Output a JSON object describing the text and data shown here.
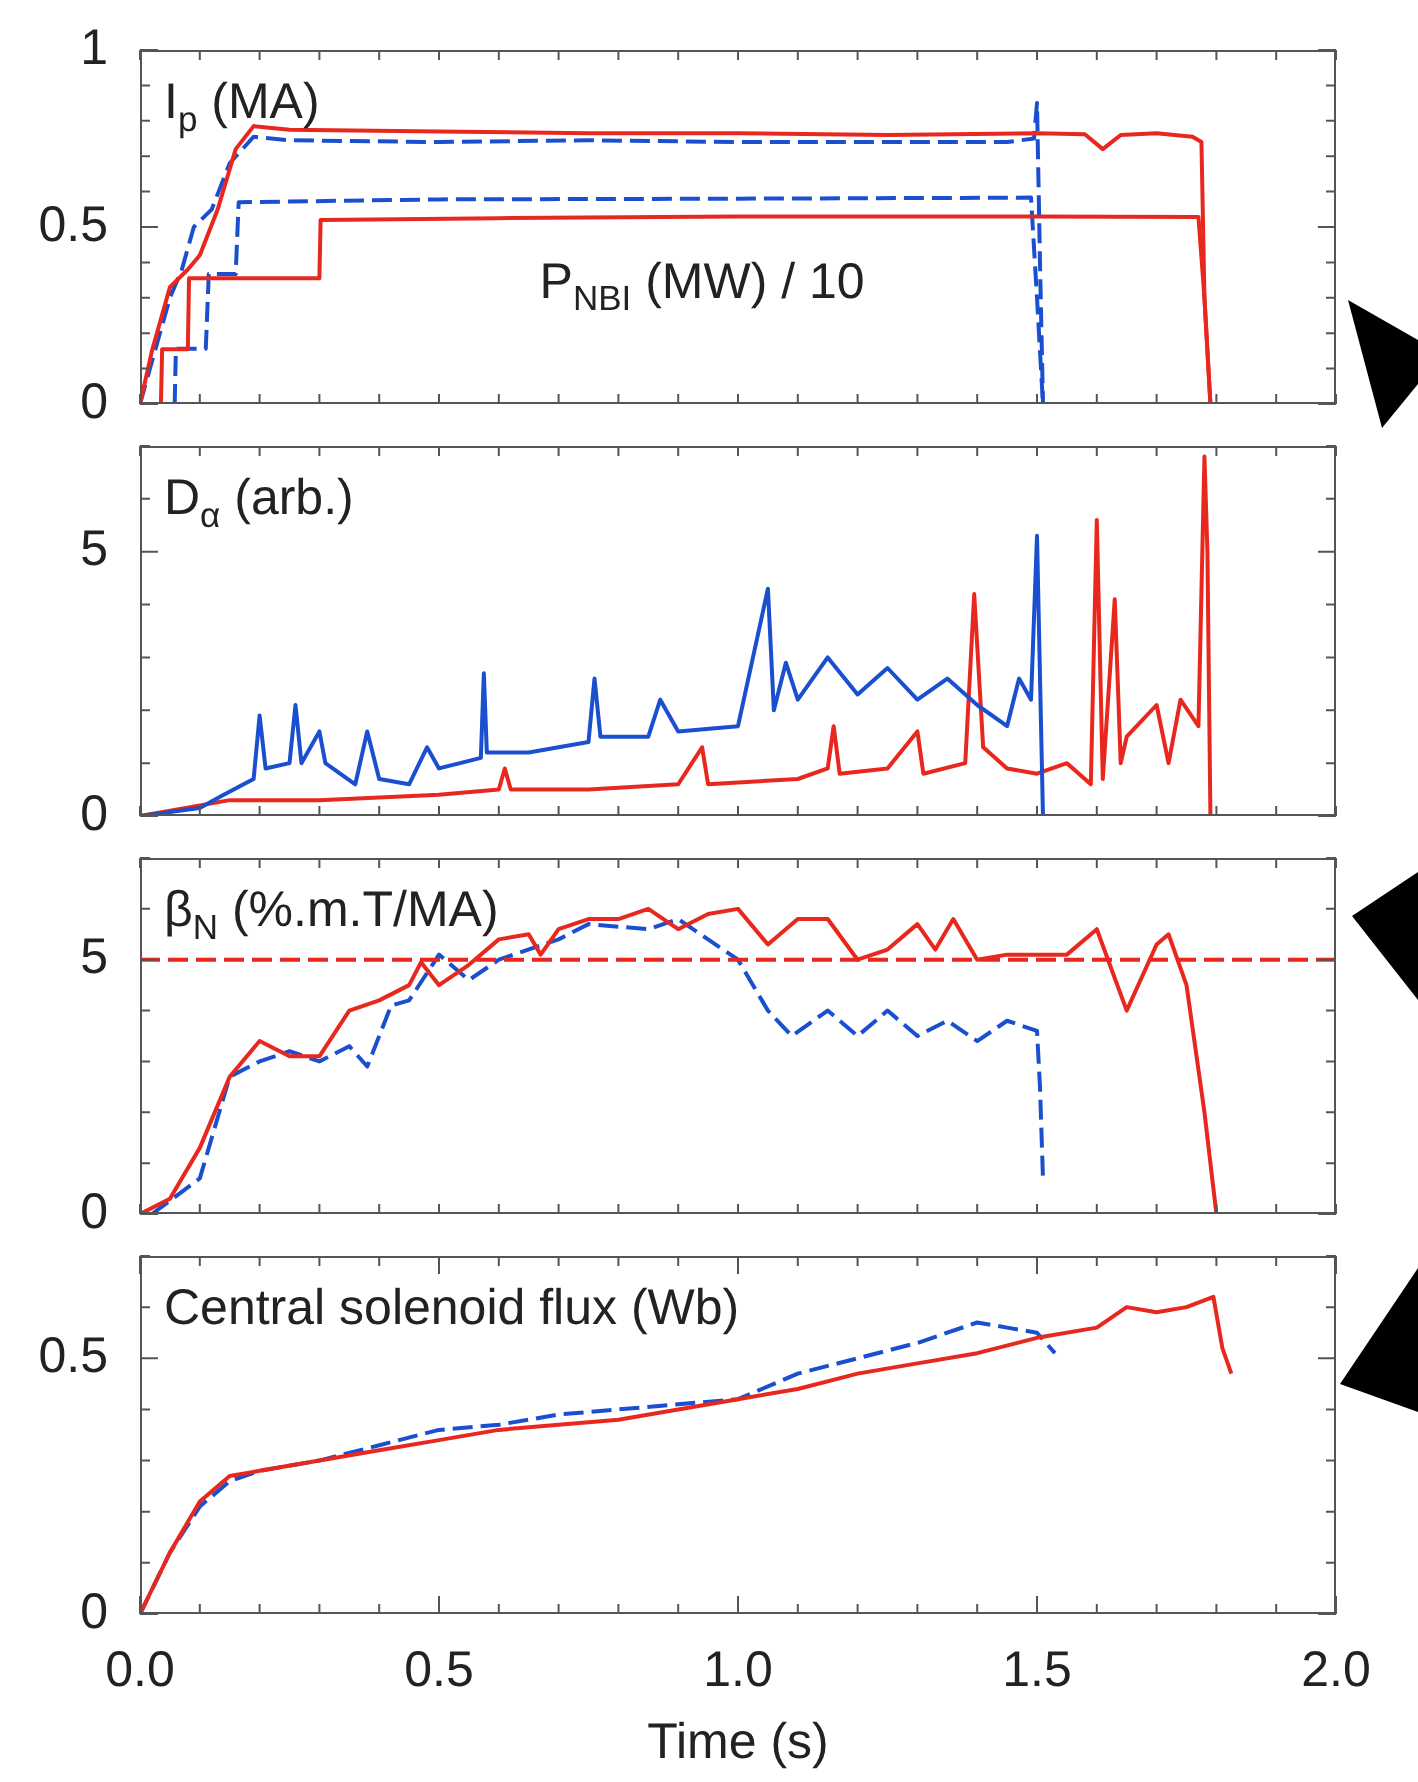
{
  "chart_data": [
    {
      "type": "line",
      "title": "I$_{p}$ (MA)",
      "annotations": [
        "P$_{NBI}$ (MW) / 10"
      ],
      "xlim": [
        0,
        2
      ],
      "ylim": [
        0,
        1
      ],
      "tick_labels": "y",
      "legend": false,
      "grid": false,
      "xticks": [
        {
          "value": 0,
          "label": null
        },
        {
          "value": 0.1,
          "label": null
        },
        {
          "value": 0.2,
          "label": null
        },
        {
          "value": 0.3,
          "label": null
        },
        {
          "value": 0.4,
          "label": null
        },
        {
          "value": 0.5,
          "label": null
        },
        {
          "value": 0.6,
          "label": null
        },
        {
          "value": 0.7,
          "label": null
        },
        {
          "value": 0.8,
          "label": null
        },
        {
          "value": 0.9,
          "label": null
        },
        {
          "value": 1,
          "label": null
        },
        {
          "value": 1.1,
          "label": null
        },
        {
          "value": 1.2,
          "label": null
        },
        {
          "value": 1.3,
          "label": null
        },
        {
          "value": 1.4,
          "label": null
        },
        {
          "value": 1.5,
          "label": null
        },
        {
          "value": 1.6,
          "label": null
        },
        {
          "value": 1.7,
          "label": null
        },
        {
          "value": 1.8,
          "label": null
        },
        {
          "value": 1.9,
          "label": null
        },
        {
          "value": 2,
          "label": null
        }
      ],
      "yticks": [
        0,
        {
          "value": 0.1,
          "label": null
        },
        {
          "value": 0.2,
          "label": null
        },
        {
          "value": 0.3,
          "label": null
        },
        {
          "value": 0.4,
          "label": null
        },
        0.5,
        {
          "value": 0.6,
          "label": null
        },
        {
          "value": 0.7,
          "label": null
        },
        {
          "value": 0.8,
          "label": null
        },
        {
          "value": 0.9,
          "label": null
        },
        1
      ],
      "series": [
        {
          "color": "#e8281e",
          "line_style": "solid",
          "x": [
            0,
            0.02,
            0.05,
            0.08,
            0.1,
            0.13,
            0.16,
            0.19,
            0.25,
            0.5,
            0.75,
            1.0,
            1.25,
            1.5,
            1.58,
            1.61,
            1.64,
            1.7,
            1.76,
            1.775,
            1.78,
            1.79
          ],
          "values": [
            0,
            0.15,
            0.33,
            0.38,
            0.42,
            0.55,
            0.72,
            0.785,
            0.775,
            0.77,
            0.765,
            0.765,
            0.76,
            0.765,
            0.762,
            0.72,
            0.76,
            0.765,
            0.755,
            0.74,
            0.3,
            0
          ]
        },
        {
          "color": "#1a4fd0",
          "line_style": "dashed",
          "x": [
            0,
            0.03,
            0.05,
            0.07,
            0.09,
            0.12,
            0.15,
            0.19,
            0.25,
            0.5,
            0.75,
            1.0,
            1.25,
            1.45,
            1.495,
            1.5,
            1.505,
            1.51
          ],
          "values": [
            0,
            0.18,
            0.3,
            0.38,
            0.5,
            0.55,
            0.68,
            0.755,
            0.745,
            0.74,
            0.745,
            0.74,
            0.74,
            0.74,
            0.75,
            0.85,
            0.4,
            0
          ]
        },
        {
          "color": "#e8281e",
          "line_style": "solid",
          "x": [
            0.035,
            0.037,
            0.08,
            0.082,
            0.3,
            0.302,
            0.6,
            1.0,
            1.5,
            1.77,
            1.78,
            1.79
          ],
          "values": [
            0,
            0.155,
            0.155,
            0.355,
            0.355,
            0.52,
            0.525,
            0.53,
            0.53,
            0.528,
            0.3,
            0
          ]
        },
        {
          "color": "#1a4fd0",
          "line_style": "dashed",
          "x": [
            0.058,
            0.06,
            0.11,
            0.115,
            0.16,
            0.165,
            0.5,
            1.0,
            1.49,
            1.5,
            1.51
          ],
          "values": [
            0,
            0.156,
            0.156,
            0.367,
            0.367,
            0.57,
            0.578,
            0.58,
            0.583,
            0.3,
            0
          ]
        }
      ]
    },
    {
      "type": "line",
      "title": "D$_{α}$ (arb.)",
      "xlim": [
        0,
        2
      ],
      "ylim": [
        0,
        7
      ],
      "tick_labels": "y",
      "legend": false,
      "grid": false,
      "xticks": [
        {
          "value": 0,
          "label": null
        },
        {
          "value": 0.1,
          "label": null
        },
        {
          "value": 0.2,
          "label": null
        },
        {
          "value": 0.3,
          "label": null
        },
        {
          "value": 0.4,
          "label": null
        },
        {
          "value": 0.5,
          "label": null
        },
        {
          "value": 0.6,
          "label": null
        },
        {
          "value": 0.7,
          "label": null
        },
        {
          "value": 0.8,
          "label": null
        },
        {
          "value": 0.9,
          "label": null
        },
        {
          "value": 1,
          "label": null
        },
        {
          "value": 1.1,
          "label": null
        },
        {
          "value": 1.2,
          "label": null
        },
        {
          "value": 1.3,
          "label": null
        },
        {
          "value": 1.4,
          "label": null
        },
        {
          "value": 1.5,
          "label": null
        },
        {
          "value": 1.6,
          "label": null
        },
        {
          "value": 1.7,
          "label": null
        },
        {
          "value": 1.8,
          "label": null
        },
        {
          "value": 1.9,
          "label": null
        },
        {
          "value": 2,
          "label": null
        }
      ],
      "yticks": [
        0,
        {
          "value": 1,
          "label": null
        },
        {
          "value": 2,
          "label": null
        },
        {
          "value": 3,
          "label": null
        },
        {
          "value": 4,
          "label": null
        },
        5,
        {
          "value": 6,
          "label": null
        },
        {
          "value": 7,
          "label": null
        }
      ],
      "series": [
        {
          "color": "#1a4fd0",
          "line_style": "solid",
          "x": [
            0,
            0.1,
            0.14,
            0.19,
            0.2,
            0.21,
            0.25,
            0.26,
            0.27,
            0.3,
            0.31,
            0.36,
            0.38,
            0.4,
            0.45,
            0.48,
            0.5,
            0.57,
            0.575,
            0.58,
            0.65,
            0.75,
            0.76,
            0.77,
            0.85,
            0.87,
            0.9,
            1.0,
            1.05,
            1.06,
            1.08,
            1.1,
            1.15,
            1.2,
            1.25,
            1.3,
            1.35,
            1.4,
            1.45,
            1.47,
            1.49,
            1.5,
            1.51
          ],
          "values": [
            0,
            0.15,
            0.4,
            0.7,
            1.9,
            0.9,
            1.0,
            2.1,
            1.0,
            1.6,
            1.0,
            0.6,
            1.6,
            0.7,
            0.6,
            1.3,
            0.9,
            1.1,
            2.7,
            1.2,
            1.2,
            1.4,
            2.6,
            1.5,
            1.5,
            2.2,
            1.6,
            1.7,
            4.3,
            2.0,
            2.9,
            2.2,
            3.0,
            2.3,
            2.8,
            2.2,
            2.6,
            2.1,
            1.7,
            2.6,
            2.2,
            5.3,
            0
          ]
        },
        {
          "color": "#e8281e",
          "line_style": "solid",
          "x": [
            0,
            0.15,
            0.3,
            0.5,
            0.6,
            0.61,
            0.62,
            0.75,
            0.9,
            0.94,
            0.95,
            1.1,
            1.15,
            1.16,
            1.17,
            1.25,
            1.3,
            1.31,
            1.38,
            1.395,
            1.41,
            1.45,
            1.5,
            1.55,
            1.59,
            1.6,
            1.61,
            1.63,
            1.64,
            1.65,
            1.7,
            1.72,
            1.74,
            1.77,
            1.78,
            1.785,
            1.79
          ],
          "values": [
            0,
            0.3,
            0.3,
            0.4,
            0.5,
            0.9,
            0.5,
            0.5,
            0.6,
            1.3,
            0.6,
            0.7,
            0.9,
            1.7,
            0.8,
            0.9,
            1.6,
            0.8,
            1.0,
            4.2,
            1.3,
            0.9,
            0.8,
            1.0,
            0.6,
            5.6,
            0.7,
            4.1,
            1.0,
            1.5,
            2.1,
            1.0,
            2.2,
            1.7,
            6.8,
            5.0,
            0
          ]
        }
      ]
    },
    {
      "type": "line",
      "title": "β$_{N}$ (%.m.T/MA)",
      "xlim": [
        0,
        2
      ],
      "ylim": [
        0,
        7
      ],
      "tick_labels": "y",
      "legend": false,
      "grid": false,
      "ref_lines": [
        {
          "axis": "y",
          "value": 5,
          "color": "#e8281e",
          "line_style": "dashed"
        }
      ],
      "xticks": [
        {
          "value": 0,
          "label": null
        },
        {
          "value": 0.1,
          "label": null
        },
        {
          "value": 0.2,
          "label": null
        },
        {
          "value": 0.3,
          "label": null
        },
        {
          "value": 0.4,
          "label": null
        },
        {
          "value": 0.5,
          "label": null
        },
        {
          "value": 0.6,
          "label": null
        },
        {
          "value": 0.7,
          "label": null
        },
        {
          "value": 0.8,
          "label": null
        },
        {
          "value": 0.9,
          "label": null
        },
        {
          "value": 1,
          "label": null
        },
        {
          "value": 1.1,
          "label": null
        },
        {
          "value": 1.2,
          "label": null
        },
        {
          "value": 1.3,
          "label": null
        },
        {
          "value": 1.4,
          "label": null
        },
        {
          "value": 1.5,
          "label": null
        },
        {
          "value": 1.6,
          "label": null
        },
        {
          "value": 1.7,
          "label": null
        },
        {
          "value": 1.8,
          "label": null
        },
        {
          "value": 1.9,
          "label": null
        },
        {
          "value": 2,
          "label": null
        }
      ],
      "yticks": [
        0,
        {
          "value": 1,
          "label": null
        },
        {
          "value": 2,
          "label": null
        },
        {
          "value": 3,
          "label": null
        },
        {
          "value": 4,
          "label": null
        },
        5,
        {
          "value": 6,
          "label": null
        },
        {
          "value": 7,
          "label": null
        }
      ],
      "series": [
        {
          "color": "#e8281e",
          "line_style": "solid",
          "x": [
            0,
            0.05,
            0.1,
            0.15,
            0.2,
            0.25,
            0.3,
            0.35,
            0.4,
            0.45,
            0.47,
            0.5,
            0.55,
            0.6,
            0.65,
            0.67,
            0.7,
            0.75,
            0.8,
            0.85,
            0.9,
            0.95,
            1.0,
            1.05,
            1.1,
            1.15,
            1.2,
            1.25,
            1.3,
            1.33,
            1.36,
            1.4,
            1.45,
            1.55,
            1.6,
            1.65,
            1.7,
            1.72,
            1.75,
            1.78,
            1.8
          ],
          "values": [
            0,
            0.3,
            1.3,
            2.7,
            3.4,
            3.1,
            3.1,
            4.0,
            4.2,
            4.5,
            4.95,
            4.5,
            4.9,
            5.4,
            5.5,
            5.1,
            5.6,
            5.8,
            5.8,
            6.0,
            5.6,
            5.9,
            6.0,
            5.3,
            5.8,
            5.8,
            5.0,
            5.2,
            5.7,
            5.2,
            5.8,
            5.0,
            5.1,
            5.1,
            5.6,
            4.0,
            5.3,
            5.5,
            4.5,
            2.0,
            0
          ]
        },
        {
          "color": "#1a4fd0",
          "line_style": "dashed",
          "x": [
            0.02,
            0.1,
            0.15,
            0.2,
            0.25,
            0.3,
            0.35,
            0.38,
            0.42,
            0.45,
            0.5,
            0.55,
            0.6,
            0.7,
            0.75,
            0.85,
            0.9,
            1.0,
            1.05,
            1.09,
            1.15,
            1.2,
            1.25,
            1.3,
            1.35,
            1.4,
            1.45,
            1.5,
            1.505,
            1.51
          ],
          "values": [
            0,
            0.7,
            2.7,
            3.0,
            3.2,
            3.0,
            3.3,
            2.9,
            4.1,
            4.2,
            5.1,
            4.6,
            5.0,
            5.4,
            5.7,
            5.6,
            5.8,
            5.0,
            4.0,
            3.5,
            4.0,
            3.5,
            4.0,
            3.5,
            3.8,
            3.4,
            3.8,
            3.6,
            2.5,
            0.7
          ]
        }
      ]
    },
    {
      "type": "line",
      "title": "Central solenoid flux (Wb)",
      "xlabel": "Time (s)",
      "xlim": [
        0,
        2
      ],
      "ylim": [
        0,
        0.7
      ],
      "legend": false,
      "grid": false,
      "xticks": [
        {
          "value": 0,
          "label": "0.0"
        },
        {
          "value": 0.1,
          "label": null
        },
        {
          "value": 0.2,
          "label": null
        },
        {
          "value": 0.3,
          "label": null
        },
        {
          "value": 0.4,
          "label": null
        },
        {
          "value": 0.5,
          "label": "0.5"
        },
        {
          "value": 0.6,
          "label": null
        },
        {
          "value": 0.7,
          "label": null
        },
        {
          "value": 0.8,
          "label": null
        },
        {
          "value": 0.9,
          "label": null
        },
        {
          "value": 1,
          "label": "1.0"
        },
        {
          "value": 1.1,
          "label": null
        },
        {
          "value": 1.2,
          "label": null
        },
        {
          "value": 1.3,
          "label": null
        },
        {
          "value": 1.4,
          "label": null
        },
        {
          "value": 1.5,
          "label": "1.5"
        },
        {
          "value": 1.6,
          "label": null
        },
        {
          "value": 1.7,
          "label": null
        },
        {
          "value": 1.8,
          "label": null
        },
        {
          "value": 1.9,
          "label": null
        },
        {
          "value": 2,
          "label": "2.0"
        }
      ],
      "yticks": [
        0,
        {
          "value": 0.1,
          "label": null
        },
        {
          "value": 0.2,
          "label": null
        },
        {
          "value": 0.3,
          "label": null
        },
        {
          "value": 0.4,
          "label": null
        },
        0.5,
        {
          "value": 0.6,
          "label": null
        },
        {
          "value": 0.7,
          "label": null
        }
      ],
      "series": [
        {
          "color": "#e8281e",
          "line_style": "solid",
          "x": [
            0,
            0.05,
            0.1,
            0.15,
            0.2,
            0.3,
            0.4,
            0.5,
            0.6,
            0.7,
            0.8,
            0.9,
            1.0,
            1.1,
            1.2,
            1.3,
            1.4,
            1.5,
            1.6,
            1.65,
            1.7,
            1.75,
            1.795,
            1.81,
            1.825
          ],
          "values": [
            0,
            0.12,
            0.22,
            0.27,
            0.28,
            0.3,
            0.32,
            0.34,
            0.36,
            0.37,
            0.38,
            0.4,
            0.42,
            0.44,
            0.47,
            0.49,
            0.51,
            0.54,
            0.56,
            0.6,
            0.59,
            0.6,
            0.62,
            0.52,
            0.47
          ]
        },
        {
          "color": "#1a4fd0",
          "line_style": "dashed",
          "x": [
            0,
            0.05,
            0.1,
            0.15,
            0.2,
            0.3,
            0.4,
            0.5,
            0.6,
            0.7,
            0.8,
            0.9,
            1.0,
            1.1,
            1.2,
            1.3,
            1.4,
            1.45,
            1.5,
            1.53
          ],
          "values": [
            0,
            0.12,
            0.21,
            0.26,
            0.28,
            0.3,
            0.33,
            0.36,
            0.37,
            0.39,
            0.4,
            0.41,
            0.42,
            0.47,
            0.5,
            0.53,
            0.57,
            0.56,
            0.55,
            0.51
          ]
        }
      ]
    }
  ]
}
